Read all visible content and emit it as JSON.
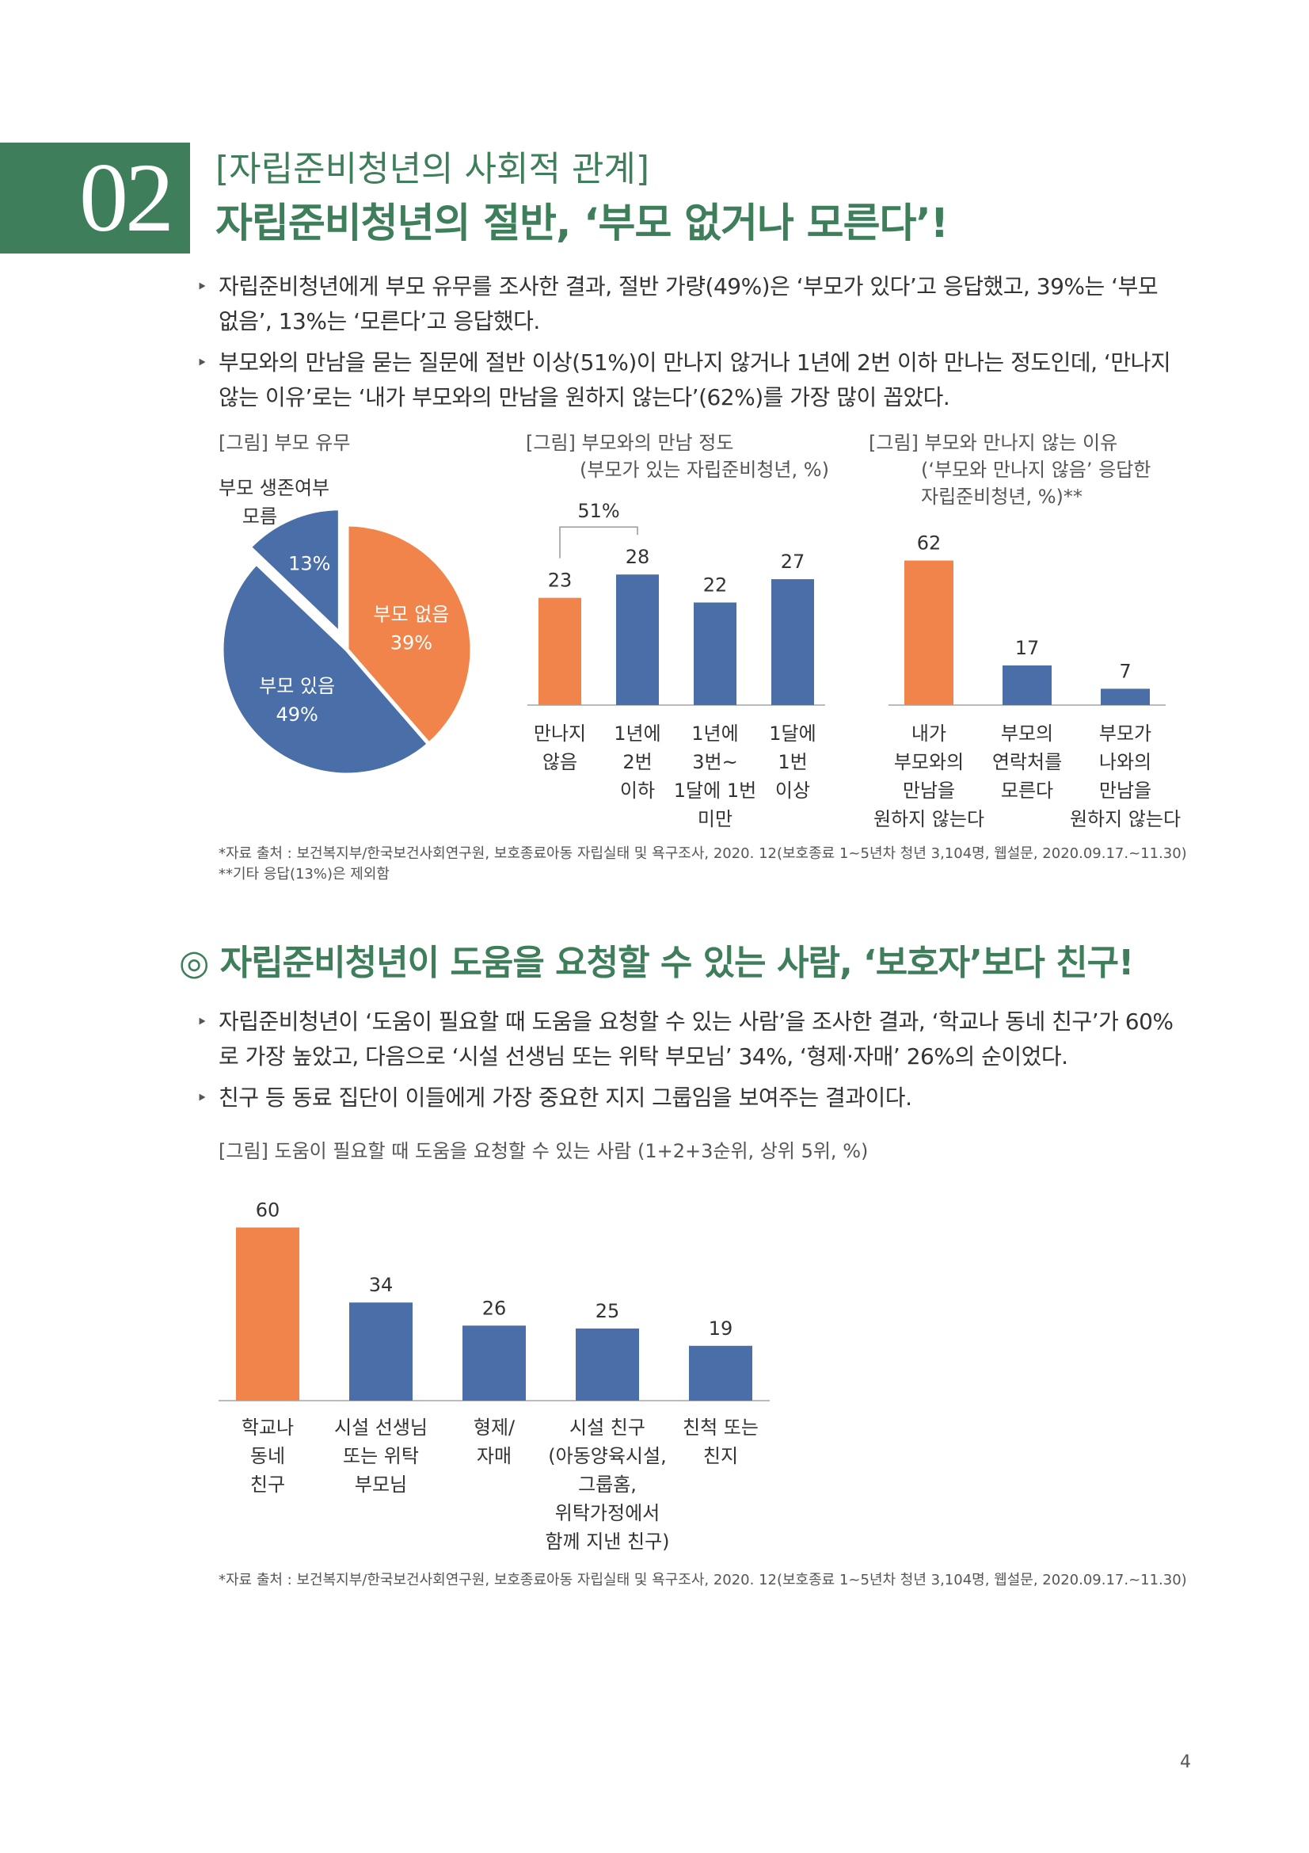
{
  "header": {
    "section_number": "02",
    "subtitle": "[자립준비청년의 사회적 관계]",
    "title": "자립준비청년의 절반, ‘부모 없거나 모른다’!"
  },
  "bullets1": [
    {
      "line1": "자립준비청년에게 부모 유무를 조사한 결과, 절반 가량(49%)은 ‘부모가 있다’고 응답했고, 39%는 ‘부모",
      "line2": "없음’, 13%는 ‘모른다’고 응답했다."
    },
    {
      "line1": "부모와의 만남을 묻는 질문에 절반 이상(51%)이 만나지 않거나 1년에 2번 이하 만나는 정도인데, ‘만나지",
      "line2": "않는 이유’로는 ‘내가 부모와의 만남을 원하지 않는다’(62%)를 가장 많이 꼽았다."
    }
  ],
  "bullet_marker": "‣",
  "pie_figure": {
    "title": "[그림] 부모 유무",
    "heading": "부모 생존여부",
    "unknown_label": "모름"
  },
  "meet_figure": {
    "title_line1": "[그림] 부모와의 만남 정도",
    "title_line2": "(부모가 있는 자립준비청년, %)",
    "bracket_label": "51%"
  },
  "reason_figure": {
    "title_line1": "[그림] 부모와 만나지 않는 이유",
    "title_line2": "(‘부모와 만나지 않음’ 응답한",
    "title_line3": "자립준비청년, %)**"
  },
  "source1_line1": "*자료 출처 : 보건복지부/한국보건사회연구원, 보호종료아동 자립실태 및 욕구조사, 2020. 12(보호종료 1~5년차 청년 3,104명, 웹설문, 2020.09.17.~11.30)",
  "source1_line2": "**기타 응답(13%)은 제외함",
  "section2": {
    "heading": "◎ 자립준비청년이 도움을 요청할 수 있는 사람, ‘보호자’보다 친구!",
    "bullets": [
      {
        "line1": "자립준비청년이 ‘도움이 필요할 때 도움을 요청할 수 있는 사람’을 조사한 결과, ‘학교나 동네 친구’가 60%",
        "line2": "로 가장 높았고, 다음으로 ‘시설 선생님 또는 위탁 부모님’ 34%, ‘형제·자매’ 26%의 순이었다."
      },
      {
        "line1": "친구 등 동료 집단이 이들에게 가장 중요한 지지 그룹임을 보여주는 결과이다.",
        "line2": ""
      }
    ],
    "figure_title": "[그림] 도움이 필요할 때 도움을 요청할 수 있는 사람 (1+2+3순위, 상위 5위, %)",
    "source": "*자료 출처 : 보건복지부/한국보건사회연구원, 보호종료아동 자립실태 및 욕구조사, 2020. 12(보호종료 1~5년차 청년 3,104명, 웹설문, 2020.09.17.~11.30)"
  },
  "page_number": "4",
  "chart_data": [
    {
      "type": "pie",
      "categories": [
        "부모 없음",
        "부모 있음",
        "모름"
      ],
      "values": [
        39,
        49,
        13
      ],
      "labels": [
        "39%",
        "49%",
        "13%"
      ],
      "colors": [
        "#f0844a",
        "#4a6ea8",
        "#4a6ea8"
      ],
      "exploded": [
        false,
        false,
        true
      ]
    },
    {
      "type": "bar",
      "categories": [
        [
          "만나지",
          "않음"
        ],
        [
          "1년에",
          "2번",
          "이하"
        ],
        [
          "1년에",
          "3번~",
          "1달에 1번",
          "미만"
        ],
        [
          "1달에",
          "1번",
          "이상"
        ]
      ],
      "values": [
        23,
        28,
        22,
        27
      ],
      "colors": [
        "#f0844a",
        "#4a6ea8",
        "#4a6ea8",
        "#4a6ea8"
      ],
      "ylim": [
        0,
        35
      ],
      "annotation": {
        "text": "51%",
        "spans": [
          0,
          1
        ]
      }
    },
    {
      "type": "bar",
      "categories": [
        [
          "내가",
          "부모와의",
          "만남을",
          "원하지 않는다"
        ],
        [
          "부모의",
          "연락처를",
          "모른다"
        ],
        [
          "부모가",
          "나와의",
          "만남을",
          "원하지 않는다"
        ]
      ],
      "values": [
        62,
        17,
        7
      ],
      "colors": [
        "#f0844a",
        "#4a6ea8",
        "#4a6ea8"
      ],
      "ylim": [
        0,
        70
      ]
    },
    {
      "type": "bar",
      "categories": [
        [
          "학교나",
          "동네",
          "친구"
        ],
        [
          "시설 선생님",
          "또는 위탁",
          "부모님"
        ],
        [
          "형제/",
          "자매"
        ],
        [
          "시설 친구",
          "(아동양육시설,",
          "그룹홈,",
          "위탁가정에서",
          "함께 지낸 친구)"
        ],
        [
          "친척 또는",
          "친지"
        ]
      ],
      "values": [
        60,
        34,
        26,
        25,
        19
      ],
      "colors": [
        "#f0844a",
        "#4a6ea8",
        "#4a6ea8",
        "#4a6ea8",
        "#4a6ea8"
      ],
      "ylim": [
        0,
        70
      ]
    }
  ]
}
